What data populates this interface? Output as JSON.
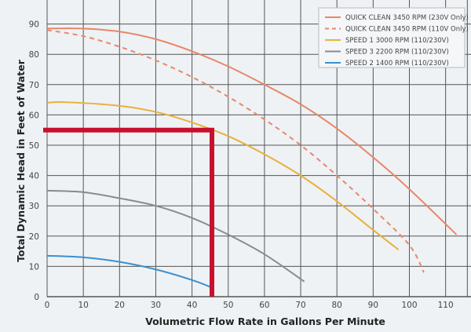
{
  "chart_data": {
    "type": "line",
    "xlabel": "Volumetric Flow Rate in Gallons Per Minute",
    "ylabel": "Total Dynamic Head in Feet of Water",
    "xlim": [
      0,
      118
    ],
    "ylim": [
      0,
      93
    ],
    "xticks": [
      0,
      10,
      20,
      30,
      40,
      50,
      60,
      70,
      80,
      90,
      100,
      110
    ],
    "yticks": [
      0,
      10,
      20,
      30,
      40,
      50,
      60,
      70,
      80,
      90
    ],
    "grid": true,
    "legend": "top-right",
    "series": [
      {
        "name": "QUICK CLEAN 3450 RPM (230V Only)",
        "color": "#e8876a",
        "dash": false,
        "x": [
          0,
          10,
          20,
          30,
          40,
          50,
          60,
          70,
          80,
          90,
          100,
          113
        ],
        "y": [
          88.5,
          88.5,
          87.5,
          85,
          81,
          76,
          70,
          63.5,
          55.5,
          46,
          35.5,
          20.5
        ]
      },
      {
        "name": "QUICK CLEAN 3450 RPM (110V Only)",
        "color": "#e8876a",
        "dash": true,
        "x": [
          0,
          10,
          20,
          30,
          40,
          50,
          60,
          70,
          80,
          90,
          100,
          104
        ],
        "y": [
          88,
          86,
          82.5,
          78,
          72.5,
          66,
          58.5,
          50,
          40,
          29,
          17,
          8
        ]
      },
      {
        "name": "SPEED 1 3000 RPM (110/230V)",
        "color": "#e8b13c",
        "dash": false,
        "x": [
          0,
          5,
          20,
          30,
          40,
          50,
          60,
          70,
          80,
          90,
          97
        ],
        "y": [
          64,
          64.2,
          63,
          61,
          57.5,
          53,
          47,
          40,
          31.5,
          22,
          15.5
        ]
      },
      {
        "name": "SPEED 3 2200 RPM (110/230V)",
        "color": "#8a8a8e",
        "dash": false,
        "x": [
          0,
          10,
          20,
          30,
          40,
          50,
          60,
          71
        ],
        "y": [
          35,
          34.5,
          32.5,
          30,
          26,
          20.5,
          14,
          5
        ]
      },
      {
        "name": "SPEED 2 1400 RPM (110/230V)",
        "color": "#3b8fd0",
        "dash": false,
        "x": [
          0,
          10,
          20,
          30,
          40,
          45.5
        ],
        "y": [
          13.5,
          13,
          11.5,
          9,
          5.5,
          3
        ]
      }
    ],
    "annotation": {
      "color": "#c8102e",
      "flow": 45.5,
      "head": 55
    }
  }
}
